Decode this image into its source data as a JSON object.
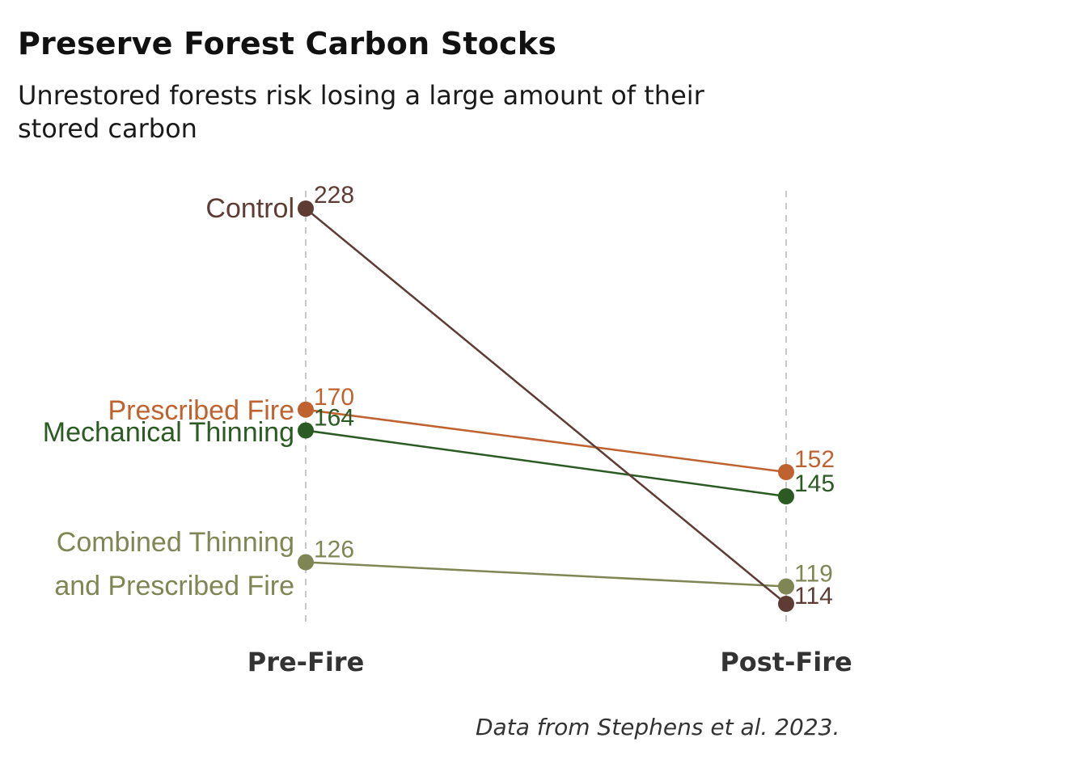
{
  "header": {
    "title": "Preserve Forest Carbon Stocks",
    "subtitle": "Unrestored forests risk losing a large amount of their stored carbon"
  },
  "caption": "Data from Stephens et al. 2023.",
  "chart_data": {
    "type": "line",
    "subtype": "slope",
    "title": "Preserve Forest Carbon Stocks",
    "subtitle": "Unrestored forests risk losing a large amount of their stored carbon",
    "categories": [
      "Pre-Fire",
      "Post-Fire"
    ],
    "xlabel": "",
    "ylabel": "",
    "ylim": [
      110,
      232
    ],
    "grid": "dashed vertical lines at each category",
    "legend": "direct labels at left",
    "series": [
      {
        "name": "Control",
        "values": [
          228,
          114
        ],
        "color": "#5e3c34",
        "label_lines": [
          "Control"
        ]
      },
      {
        "name": "Prescribed Fire",
        "values": [
          170,
          152
        ],
        "color": "#c0622f",
        "label_lines": [
          "Prescribed Fire"
        ]
      },
      {
        "name": "Mechanical Thinning",
        "values": [
          164,
          145
        ],
        "color": "#2b5a22",
        "label_lines": [
          "Mechanical Thinning"
        ]
      },
      {
        "name": "Combined Thinning and Prescribed Fire",
        "values": [
          126,
          119
        ],
        "color": "#808554",
        "label_lines": [
          "Combined Thinning",
          "and Prescribed Fire"
        ]
      }
    ],
    "source": "Data from Stephens et al. 2023."
  }
}
